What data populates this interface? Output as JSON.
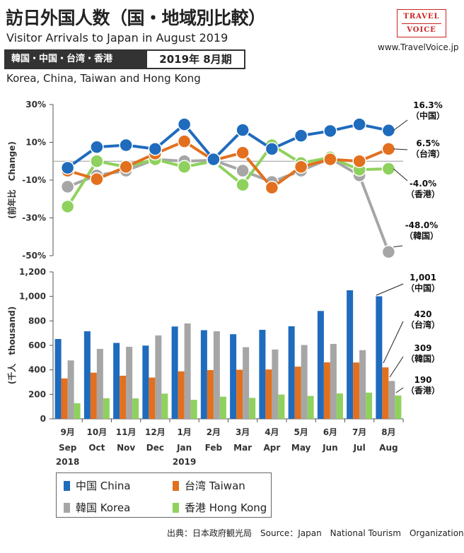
{
  "header": {
    "title_ja": "訪日外国人数（国・地域別比較）",
    "title_en": "Visitor Arrivals to Japan in August 2019",
    "region_label": "韓国・中国・台湾・香港",
    "period_label": "2019年 8月期",
    "subtitle_en": "Korea, China, Taiwan and Hong Kong"
  },
  "logo": {
    "line1": "TRAVEL",
    "line2": "VOICE"
  },
  "site_url": "www.TravelVoice.jp",
  "source": "出典：日本政府観光局　Source：Japan　National Tourism　Organization",
  "colors": {
    "china": "#1f6bbd",
    "taiwan": "#e2701f",
    "korea": "#a6a6a6",
    "hongkong": "#8fd15e"
  },
  "legend": [
    {
      "key": "china",
      "label": "中国 China"
    },
    {
      "key": "taiwan",
      "label": "台湾 Taiwan"
    },
    {
      "key": "korea",
      "label": "韓国 Korea"
    },
    {
      "key": "hongkong",
      "label": "香港 Hong Kong"
    }
  ],
  "chart_data": [
    {
      "type": "line",
      "ylabel": "(前年比　Change)",
      "ylim": [
        -50,
        30
      ],
      "yticks": [
        30,
        10,
        -10,
        -30,
        -50
      ],
      "ytick_labels": [
        "30%",
        "10%",
        "-10%",
        "-30%",
        "-50%"
      ],
      "categories": [
        "9月 Sep 2018",
        "10月 Oct",
        "11月 Nov",
        "12月 Dec",
        "1月 Jan 2019",
        "2月 Feb",
        "3月 Mar",
        "4月 Apr",
        "5月 May",
        "6月 Jun",
        "7月 Jul",
        "8月 Aug"
      ],
      "series": [
        {
          "key": "china",
          "name": "中国 China",
          "values": [
            -3.5,
            7.5,
            8.5,
            6.5,
            19.5,
            1.0,
            16.5,
            6.5,
            13.5,
            16.0,
            19.5,
            16.3
          ]
        },
        {
          "key": "taiwan",
          "name": "台湾 Taiwan",
          "values": [
            -5.0,
            -9.5,
            -3.0,
            4.0,
            10.5,
            0.5,
            4.5,
            -14.0,
            -3.0,
            1.0,
            0.0,
            6.5
          ]
        },
        {
          "key": "korea",
          "name": "韓国 Korea",
          "values": [
            -13.5,
            -7.5,
            -5.0,
            1.0,
            0.0,
            0.5,
            -5.0,
            -11.0,
            -5.0,
            1.5,
            -7.5,
            -48.0
          ]
        },
        {
          "key": "hongkong",
          "name": "香港 Hong Kong",
          "values": [
            -24.0,
            0.0,
            -3.0,
            1.0,
            -3.0,
            0.0,
            -12.5,
            8.5,
            -1.0,
            2.0,
            -4.5,
            -4.0
          ]
        }
      ],
      "annotations": [
        {
          "key": "china",
          "value": "16.3%",
          "name": "（中国）"
        },
        {
          "key": "taiwan",
          "value": "6.5%",
          "name": "（台湾）"
        },
        {
          "key": "hongkong",
          "value": "-4.0%",
          "name": "（香港）"
        },
        {
          "key": "korea",
          "value": "-48.0%",
          "name": "（韓国）"
        }
      ]
    },
    {
      "type": "bar",
      "ylabel": "(千人　thousand)",
      "ylim": [
        0,
        1200
      ],
      "yticks": [
        0,
        200,
        400,
        600,
        800,
        1000,
        1200
      ],
      "ytick_labels": [
        "0",
        "200",
        "400",
        "600",
        "800",
        "1,000",
        "1,200"
      ],
      "categories": [
        "9月 Sep 2018",
        "10月 Oct",
        "11月 Nov",
        "12月 Dec",
        "1月 Jan 2019",
        "2月 Feb",
        "3月 Mar",
        "4月 Apr",
        "5月 May",
        "6月 Jun",
        "7月 Jul",
        "8月 Aug"
      ],
      "month_labels": [
        "9月",
        "10月",
        "11月",
        "12月",
        "1月",
        "2月",
        "3月",
        "4月",
        "5月",
        "6月",
        "7月",
        "8月"
      ],
      "month_labels_en": [
        "Sep",
        "Oct",
        "Nov",
        "Dec",
        "Jan",
        "Feb",
        "Mar",
        "Apr",
        "May",
        "Jun",
        "Jul",
        "Aug"
      ],
      "year_labels": [
        "2018",
        "",
        "",
        "",
        "2019",
        "",
        "",
        "",
        "",
        "",
        "",
        ""
      ],
      "series": [
        {
          "key": "china",
          "name": "中国 China",
          "values": [
            652,
            715,
            620,
            598,
            754,
            724,
            691,
            727,
            756,
            881,
            1050,
            1001
          ]
        },
        {
          "key": "taiwan",
          "name": "台湾 Taiwan",
          "values": [
            330,
            377,
            352,
            337,
            388,
            398,
            401,
            403,
            426,
            461,
            460,
            420
          ]
        },
        {
          "key": "korea",
          "name": "韓国 Korea",
          "values": [
            477,
            571,
            588,
            681,
            779,
            715,
            585,
            566,
            603,
            612,
            561,
            309
          ]
        },
        {
          "key": "hongkong",
          "name": "香港 Hong Kong",
          "values": [
            127,
            168,
            167,
            206,
            155,
            181,
            171,
            198,
            187,
            207,
            214,
            190
          ]
        }
      ],
      "annotations": [
        {
          "key": "china",
          "value": "1,001",
          "name": "（中国）"
        },
        {
          "key": "taiwan",
          "value": "420",
          "name": "（台湾）"
        },
        {
          "key": "korea",
          "value": "309",
          "name": "（韓国）"
        },
        {
          "key": "hongkong",
          "value": "190",
          "name": "（香港）"
        }
      ]
    }
  ]
}
